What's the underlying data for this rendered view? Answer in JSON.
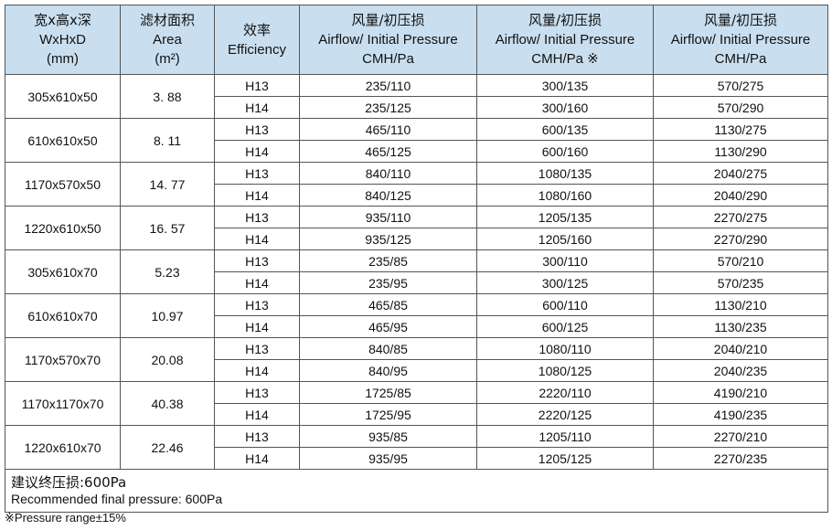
{
  "header": {
    "size": {
      "cn": "宽x高x深",
      "en": "WxHxD",
      "unit": "(mm)"
    },
    "area": {
      "cn": "滤材面积",
      "en": "Area",
      "unit": "(m²)"
    },
    "efficiency": {
      "cn": "效率",
      "en": "Efficiency"
    },
    "airflow_1": {
      "cn": "风量/初压损",
      "en": "Airflow/ Initial Pressure",
      "unit": "CMH/Pa"
    },
    "airflow_2": {
      "cn": "风量/初压损",
      "en": "Airflow/ Initial Pressure",
      "unit": "CMH/Pa ※"
    },
    "airflow_3": {
      "cn": "风量/初压损",
      "en": "Airflow/ Initial Pressure",
      "unit": "CMH/Pa"
    }
  },
  "groups": [
    {
      "size": "305x610x50",
      "area": "3. 88",
      "rows": [
        {
          "eff": "H13",
          "a1": "235/110",
          "a2": "300/135",
          "a3": "570/275"
        },
        {
          "eff": "H14",
          "a1": "235/125",
          "a2": "300/160",
          "a3": "570/290"
        }
      ]
    },
    {
      "size": "610x610x50",
      "area": "8. 11",
      "rows": [
        {
          "eff": "H13",
          "a1": "465/110",
          "a2": "600/135",
          "a3": "1130/275"
        },
        {
          "eff": "H14",
          "a1": "465/125",
          "a2": "600/160",
          "a3": "1130/290"
        }
      ]
    },
    {
      "size": "1170x570x50",
      "area": "14. 77",
      "rows": [
        {
          "eff": "H13",
          "a1": "840/110",
          "a2": "1080/135",
          "a3": "2040/275"
        },
        {
          "eff": "H14",
          "a1": "840/125",
          "a2": "1080/160",
          "a3": "2040/290"
        }
      ]
    },
    {
      "size": "1220x610x50",
      "area": "16. 57",
      "rows": [
        {
          "eff": "H13",
          "a1": "935/110",
          "a2": "1205/135",
          "a3": "2270/275"
        },
        {
          "eff": "H14",
          "a1": "935/125",
          "a2": "1205/160",
          "a3": "2270/290"
        }
      ]
    },
    {
      "size": "305x610x70",
      "area": "5.23",
      "rows": [
        {
          "eff": "H13",
          "a1": "235/85",
          "a2": "300/110",
          "a3": "570/210"
        },
        {
          "eff": "H14",
          "a1": "235/95",
          "a2": "300/125",
          "a3": "570/235"
        }
      ]
    },
    {
      "size": "610x610x70",
      "area": "10.97",
      "rows": [
        {
          "eff": "H13",
          "a1": "465/85",
          "a2": "600/110",
          "a3": "1130/210"
        },
        {
          "eff": "H14",
          "a1": "465/95",
          "a2": "600/125",
          "a3": "1130/235"
        }
      ]
    },
    {
      "size": "1170x570x70",
      "area": "20.08",
      "rows": [
        {
          "eff": "H13",
          "a1": "840/85",
          "a2": "1080/110",
          "a3": "2040/210"
        },
        {
          "eff": "H14",
          "a1": "840/95",
          "a2": "1080/125",
          "a3": "2040/235"
        }
      ]
    },
    {
      "size": "1170x1170x70",
      "area": "40.38",
      "rows": [
        {
          "eff": "H13",
          "a1": "1725/85",
          "a2": "2220/110",
          "a3": "4190/210"
        },
        {
          "eff": "H14",
          "a1": "1725/95",
          "a2": "2220/125",
          "a3": "4190/235"
        }
      ]
    },
    {
      "size": "1220x610x70",
      "area": "22.46",
      "rows": [
        {
          "eff": "H13",
          "a1": "935/85",
          "a2": "1205/110",
          "a3": "2270/210"
        },
        {
          "eff": "H14",
          "a1": "935/95",
          "a2": "1205/125",
          "a3": "2270/235"
        }
      ]
    }
  ],
  "footer": {
    "cn": "建议终压损:600Pa",
    "en": "Recommended final pressure: 600Pa"
  },
  "footnote": "※Pressure  range±15%"
}
